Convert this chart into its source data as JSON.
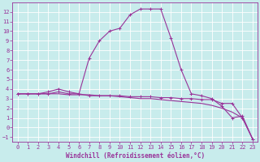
{
  "xlabel": "Windchill (Refroidissement éolien,°C)",
  "bg_color": "#c8ecec",
  "grid_color": "#b0d8d8",
  "line_color": "#993399",
  "xlim": [
    -0.5,
    23.5
  ],
  "ylim": [
    -1.5,
    13.0
  ],
  "yticks": [
    -1,
    0,
    1,
    2,
    3,
    4,
    5,
    6,
    7,
    8,
    9,
    10,
    11,
    12
  ],
  "xticks": [
    0,
    1,
    2,
    3,
    4,
    5,
    6,
    7,
    8,
    9,
    10,
    11,
    12,
    13,
    14,
    15,
    16,
    17,
    18,
    19,
    20,
    21,
    22,
    23
  ],
  "line1_x": [
    0,
    1,
    2,
    3,
    4,
    5,
    6,
    7,
    8,
    9,
    10,
    11,
    12,
    13,
    14,
    15,
    16,
    17,
    18,
    19,
    20,
    21,
    22,
    23
  ],
  "line1_y": [
    3.5,
    3.5,
    3.5,
    3.7,
    4.0,
    3.7,
    3.5,
    3.3,
    3.3,
    3.3,
    3.3,
    3.2,
    3.2,
    3.2,
    3.1,
    3.1,
    3.0,
    3.0,
    2.9,
    2.9,
    2.5,
    2.5,
    1.0,
    -1.2
  ],
  "line2_x": [
    0,
    1,
    2,
    3,
    4,
    5,
    6,
    7,
    8,
    9,
    10,
    11,
    12,
    13,
    14,
    15,
    16,
    17,
    18,
    19,
    20,
    21,
    22,
    23
  ],
  "line2_y": [
    3.5,
    3.5,
    3.5,
    3.5,
    3.7,
    3.5,
    3.5,
    7.2,
    9.0,
    10.0,
    10.3,
    11.7,
    12.3,
    12.3,
    12.3,
    9.3,
    6.0,
    3.5,
    3.3,
    3.0,
    2.2,
    1.0,
    1.2,
    -1.2
  ],
  "line3_x": [
    0,
    1,
    2,
    3,
    4,
    5,
    6,
    7,
    8,
    9,
    10,
    11,
    12,
    13,
    14,
    15,
    16,
    17,
    18,
    19,
    20,
    21,
    22,
    23
  ],
  "line3_y": [
    3.5,
    3.5,
    3.5,
    3.5,
    3.5,
    3.4,
    3.4,
    3.4,
    3.3,
    3.3,
    3.2,
    3.1,
    3.0,
    3.0,
    2.9,
    2.8,
    2.7,
    2.6,
    2.5,
    2.3,
    2.0,
    1.6,
    1.0,
    -1.2
  ],
  "marker_size": 3,
  "linewidth": 0.8,
  "tick_fontsize": 5,
  "label_fontsize": 5.5
}
